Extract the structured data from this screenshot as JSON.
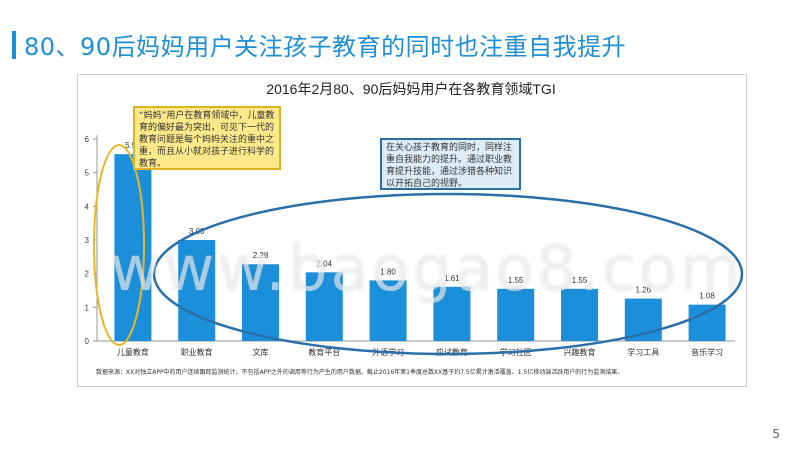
{
  "slide": {
    "title": "80、90后妈妈用户关注孩子教育的同时也注重自我提升",
    "page_number": "5",
    "watermark": "www.baogao8.com",
    "source": "数据来源：XX对独立APP中的用户连续跟踪监测统计，不包括APP之外的调用等行为产生的用户数据。截止2016年第1季度总数XX基于约7.5亿累计激活覆盖、1.5亿移动端活跃用户的行为监测结果。"
  },
  "annotations": {
    "yellow": "“妈妈”用户在教育领域中，儿童教育的偏好最为突出，可见下一代的教育问题是每个妈妈关注的重中之重，而且从小就对孩子进行科学的教育。",
    "blue": "在关心孩子教育的同时，同样注重自我能力的提升。通过职业教育提升技能，通过涉猎各种知识以开拓自己的视野。"
  },
  "colors": {
    "bar": "#1b8fd9",
    "accent": "#1e8fd6",
    "yellow_ellipse": "#e6b828",
    "blue_ellipse": "#2a6fa8"
  },
  "chart_data": {
    "type": "bar",
    "title": "2016年2月80、90后妈妈用户在各教育领域TGI",
    "categories": [
      "儿童教育",
      "职业教育",
      "文库",
      "教育平台",
      "外语学习",
      "应试教育",
      "学习社区",
      "兴趣教育",
      "学习工具",
      "音乐学习"
    ],
    "values": [
      5.55,
      3.0,
      2.28,
      2.04,
      1.8,
      1.61,
      1.55,
      1.55,
      1.26,
      1.08
    ],
    "value_labels": [
      "5.55",
      "3.00",
      "2.28",
      "2.04",
      "1.80",
      "1.61",
      "1.55",
      "1.55",
      "1.26",
      "1.08"
    ],
    "yticks": [
      "0",
      "1",
      "2",
      "3",
      "4",
      "5",
      "6"
    ],
    "ylim": [
      0,
      6
    ],
    "grid": false,
    "legend": "none"
  }
}
